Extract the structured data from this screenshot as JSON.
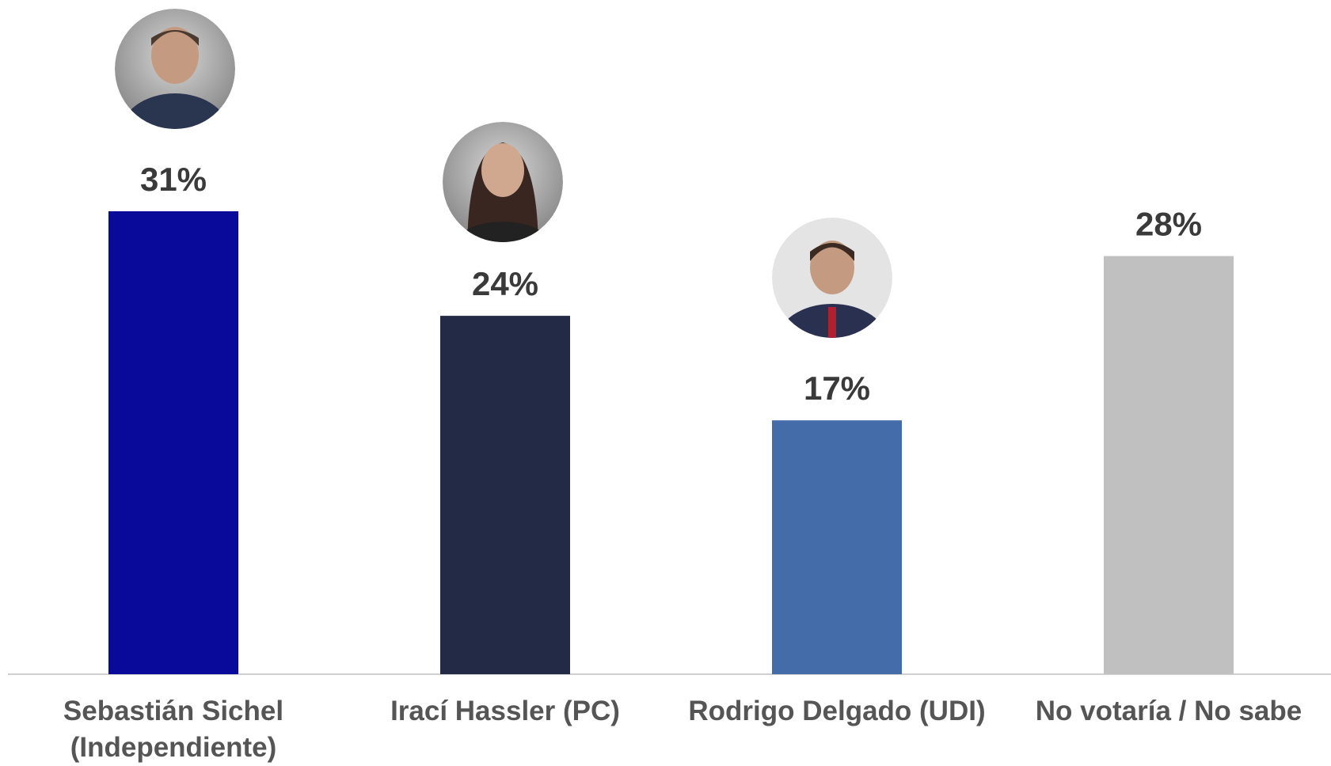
{
  "chart_data": {
    "type": "bar",
    "categories": [
      "Sebastián Sichel (Independiente)",
      "Irací Hassler (PC)",
      "Rodrigo Delgado (UDI)",
      "No votaría / No sabe"
    ],
    "values": [
      31,
      24,
      17,
      28
    ],
    "value_labels": [
      "31%",
      "24%",
      "17%",
      "28%"
    ],
    "colors": [
      "#0a0a9a",
      "#232a45",
      "#446ca9",
      "#c0c0c0"
    ]
  }
}
